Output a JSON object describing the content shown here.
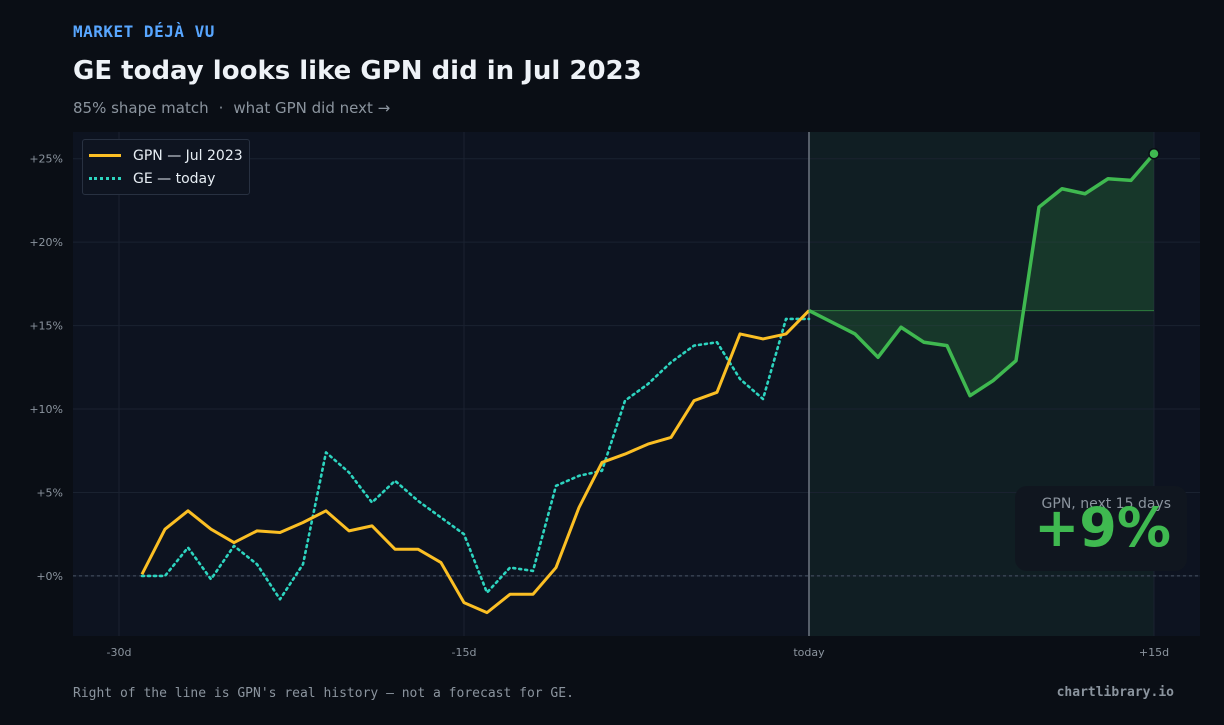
{
  "header": {
    "kicker": "MARKET DÉJÀ VU",
    "title": "GE today looks like GPN did in Jul 2023",
    "subtitle_match": "85% shape match",
    "subtitle_sep": "·",
    "subtitle_link": "what GPN did next →"
  },
  "badge": {
    "label": "GPN, next 15 days",
    "value": "+9%"
  },
  "footer": {
    "note": "Right of the line is GPN's real history — not a forecast for GE.",
    "brand": "chartlibrary.io"
  },
  "colors": {
    "background": "#0a0e15",
    "plot_bg": "#0d1320",
    "gpn_line": "#fbbf24",
    "ge_line": "#2dd4bf",
    "forward_line": "#3fb950",
    "accent": "#58a6ff"
  },
  "chart_data": {
    "type": "line",
    "x_label": "",
    "y_label": "",
    "xlim": [
      -32,
      17
    ],
    "ylim": [
      -3.6,
      26.6
    ],
    "x_ticks": [
      {
        "value": -30,
        "label": "-30d"
      },
      {
        "value": -15,
        "label": "-15d"
      },
      {
        "value": 0,
        "label": "today"
      },
      {
        "value": 15,
        "label": "+15d"
      }
    ],
    "y_ticks": [
      {
        "value": 0,
        "label": "+0%"
      },
      {
        "value": 5,
        "label": "+5%"
      },
      {
        "value": 10,
        "label": "+10%"
      },
      {
        "value": 15,
        "label": "+15%"
      },
      {
        "value": 20,
        "label": "+20%"
      },
      {
        "value": 25,
        "label": "+25%"
      }
    ],
    "grid": true,
    "legend": "top-left",
    "today_x": 0,
    "series": [
      {
        "name": "GPN — Jul 2023",
        "style": "solid",
        "x": [
          -29,
          -28,
          -27,
          -26,
          -25,
          -24,
          -23,
          -22,
          -21,
          -20,
          -19,
          -18,
          -17,
          -16,
          -15,
          -14,
          -13,
          -12,
          -11,
          -10,
          -9,
          -8,
          -7,
          -6,
          -5,
          -4,
          -3,
          -2,
          -1,
          0
        ],
        "values": [
          0.1,
          2.8,
          3.9,
          2.8,
          2.0,
          2.7,
          2.6,
          3.2,
          3.9,
          2.7,
          3.0,
          1.6,
          1.6,
          0.8,
          -1.6,
          -2.2,
          -1.1,
          -1.1,
          0.5,
          4.1,
          6.8,
          7.3,
          7.9,
          8.3,
          10.5,
          11.0,
          14.5,
          14.2,
          14.5,
          15.9
        ]
      },
      {
        "name": "GE — today",
        "style": "dotted",
        "x": [
          -29,
          -28,
          -27,
          -26,
          -25,
          -24,
          -23,
          -22,
          -21,
          -20,
          -19,
          -18,
          -17,
          -16,
          -15,
          -14,
          -13,
          -12,
          -11,
          -10,
          -9,
          -8,
          -7,
          -6,
          -5,
          -4,
          -3,
          -2,
          -1,
          0
        ],
        "values": [
          0.0,
          0.0,
          1.7,
          -0.2,
          1.8,
          0.7,
          -1.4,
          0.7,
          7.4,
          6.2,
          4.4,
          5.7,
          4.5,
          3.5,
          2.5,
          -1.0,
          0.5,
          0.3,
          5.4,
          6.0,
          6.3,
          10.5,
          11.5,
          12.8,
          13.8,
          14.0,
          11.8,
          10.6,
          15.4,
          15.4
        ]
      },
      {
        "name": "",
        "style": "forward",
        "x": [
          0,
          1,
          2,
          3,
          4,
          5,
          6,
          7,
          8,
          9,
          10,
          11,
          12,
          13,
          14,
          15
        ],
        "values": [
          15.9,
          15.2,
          14.5,
          13.1,
          14.9,
          14.0,
          13.8,
          10.8,
          11.7,
          12.9,
          22.1,
          23.2,
          22.9,
          23.8,
          23.7,
          25.3
        ]
      }
    ]
  }
}
